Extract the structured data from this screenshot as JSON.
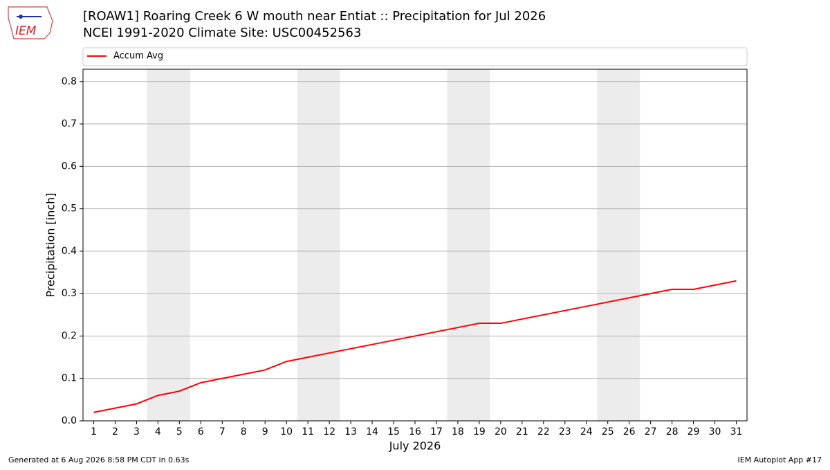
{
  "logo_text": "IEM",
  "footer_left": "Generated at 6 Aug 2026 8:58 PM CDT in 0.63s",
  "footer_right": "IEM Autoplot App #17",
  "chart_data": {
    "type": "line",
    "title": "[ROAW1] Roaring Creek 6 W mouth near Entiat :: Precipitation for Jul 2026",
    "subtitle": "NCEI 1991-2020 Climate Site: USC00452563",
    "x_label": "July 2026",
    "y_label": "Precipitation [inch]",
    "x": [
      1,
      2,
      3,
      4,
      5,
      6,
      7,
      8,
      9,
      10,
      11,
      12,
      13,
      14,
      15,
      16,
      17,
      18,
      19,
      20,
      21,
      22,
      23,
      24,
      25,
      26,
      27,
      28,
      29,
      30,
      31
    ],
    "series": [
      {
        "name": "Accum Avg",
        "color": "#ff0000",
        "values": [
          0.02,
          0.03,
          0.04,
          0.06,
          0.07,
          0.09,
          0.1,
          0.11,
          0.12,
          0.14,
          0.15,
          0.16,
          0.17,
          0.18,
          0.19,
          0.2,
          0.21,
          0.22,
          0.23,
          0.23,
          0.24,
          0.25,
          0.26,
          0.27,
          0.28,
          0.29,
          0.3,
          0.31,
          0.31,
          0.32,
          0.33
        ]
      }
    ],
    "xlim": [
      0.5,
      31.5
    ],
    "xticks": [
      1,
      2,
      3,
      4,
      5,
      6,
      7,
      8,
      9,
      10,
      11,
      12,
      13,
      14,
      15,
      16,
      17,
      18,
      19,
      20,
      21,
      22,
      23,
      24,
      25,
      26,
      27,
      28,
      29,
      30,
      31
    ],
    "ylim": [
      0,
      0.829
    ],
    "yticks": [
      {
        "value": 0,
        "label": "0.0"
      },
      0.1,
      0.2,
      0.3,
      0.4,
      0.5,
      0.6,
      0.7,
      0.8
    ],
    "shaded_spans": [
      [
        3.5,
        5.5
      ],
      [
        10.5,
        12.5
      ],
      [
        17.5,
        19.5
      ],
      [
        24.5,
        26.5
      ]
    ],
    "shade_color": "#ececec",
    "grid": true,
    "legend": "top"
  }
}
